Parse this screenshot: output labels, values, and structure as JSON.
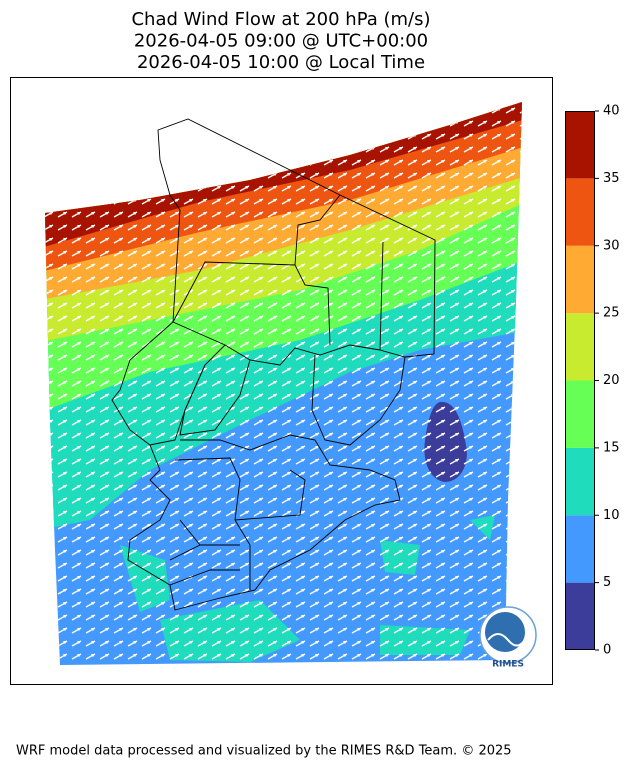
{
  "header": {
    "title_lines": [
      "Chad Wind Flow at 200 hPa (m/s)",
      "2026-04-05 09:00 @ UTC+00:00",
      "2026-04-05 10:00 @ Local Time"
    ]
  },
  "colorbar": {
    "lim": [
      0,
      40
    ],
    "ticks": [
      0,
      5,
      10,
      15,
      20,
      25,
      30,
      35,
      40
    ],
    "colors": [
      "#3c3c9a",
      "#4499ff",
      "#1edcbc",
      "#66ff55",
      "#c8eb30",
      "#ffaa33",
      "#ee5511",
      "#a81300"
    ]
  },
  "logo": {
    "text": "RIMES"
  },
  "footer": {
    "text": "WRF model data processed and visualized by the RIMES R&D Team. © 2025"
  }
}
